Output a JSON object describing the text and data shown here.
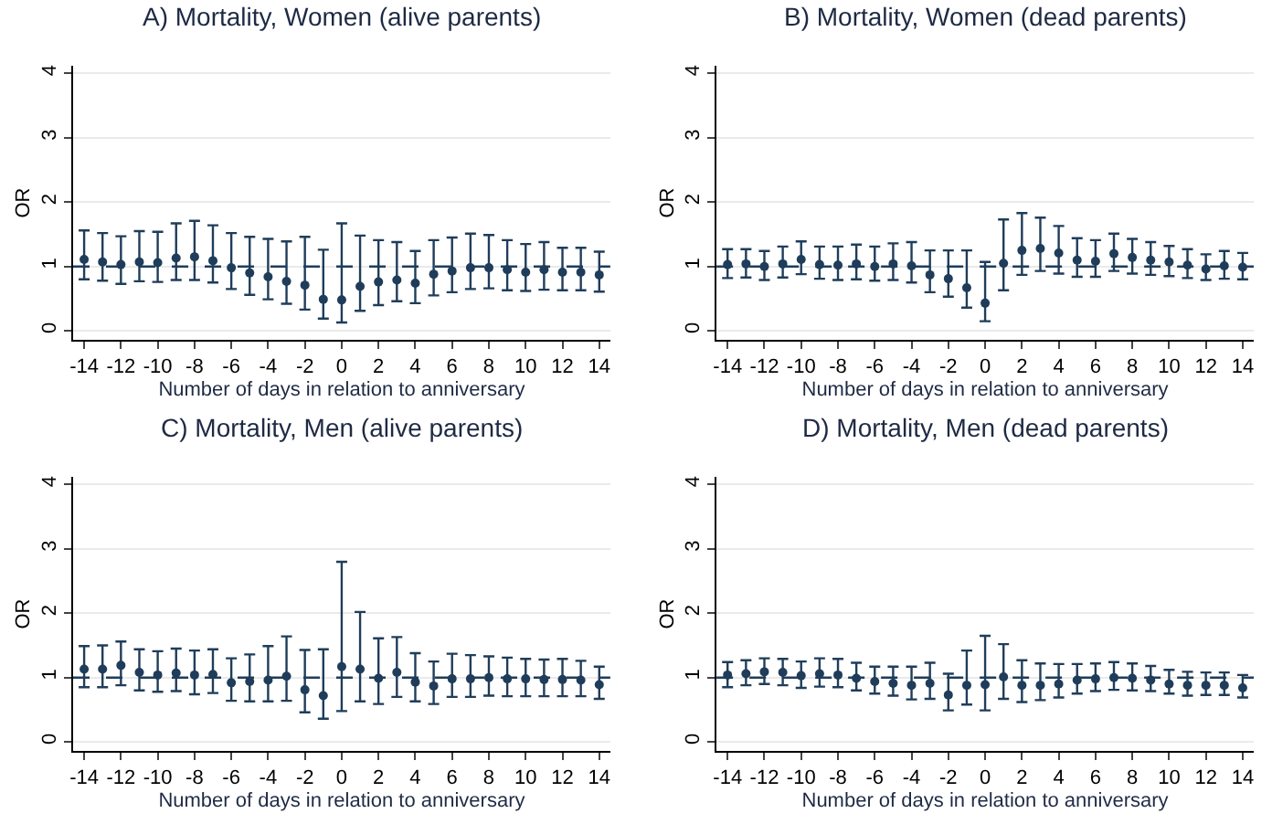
{
  "chart_data": [
    {
      "type": "scatter",
      "title": "A) Mortality, Women (alive parents)",
      "xlabel": "Number of days in relation to anniversary",
      "ylabel": "OR",
      "x": [
        -14,
        -13,
        -12,
        -11,
        -10,
        -9,
        -8,
        -7,
        -6,
        -5,
        -4,
        -3,
        -2,
        -1,
        0,
        1,
        2,
        3,
        4,
        5,
        6,
        7,
        8,
        9,
        10,
        11,
        12,
        13,
        14
      ],
      "xlim": [
        -14.6,
        14.6
      ],
      "xticks": [
        -14,
        -12,
        -10,
        -8,
        -6,
        -4,
        -2,
        0,
        2,
        4,
        6,
        8,
        10,
        12,
        14
      ],
      "ylim": [
        -0.14,
        4.12
      ],
      "yticks": [
        0,
        1,
        2,
        3,
        4
      ],
      "grid": "y",
      "marker": "circle",
      "series": [
        {
          "color": "#1f3d5a",
          "values": [
            1.11,
            1.07,
            1.03,
            1.07,
            1.06,
            1.13,
            1.15,
            1.09,
            0.98,
            0.9,
            0.84,
            0.77,
            0.71,
            0.49,
            0.48,
            0.69,
            0.76,
            0.79,
            0.74,
            0.88,
            0.93,
            0.98,
            0.98,
            0.95,
            0.91,
            0.95,
            0.91,
            0.91,
            0.87
          ],
          "errors": [
            [
              0.8,
              1.56
            ],
            [
              0.78,
              1.52
            ],
            [
              0.73,
              1.47
            ],
            [
              0.77,
              1.55
            ],
            [
              0.76,
              1.54
            ],
            [
              0.79,
              1.67
            ],
            [
              0.79,
              1.71
            ],
            [
              0.75,
              1.64
            ],
            [
              0.65,
              1.52
            ],
            [
              0.56,
              1.46
            ],
            [
              0.49,
              1.43
            ],
            [
              0.42,
              1.39
            ],
            [
              0.33,
              1.46
            ],
            [
              0.19,
              1.26
            ],
            [
              0.13,
              1.67
            ],
            [
              0.31,
              1.48
            ],
            [
              0.4,
              1.41
            ],
            [
              0.46,
              1.38
            ],
            [
              0.43,
              1.24
            ],
            [
              0.55,
              1.41
            ],
            [
              0.6,
              1.45
            ],
            [
              0.65,
              1.51
            ],
            [
              0.66,
              1.49
            ],
            [
              0.63,
              1.41
            ],
            [
              0.62,
              1.35
            ],
            [
              0.64,
              1.38
            ],
            [
              0.63,
              1.29
            ],
            [
              0.63,
              1.29
            ],
            [
              0.61,
              1.23
            ]
          ]
        }
      ],
      "ref_lines": [
        {
          "axis": "y",
          "value": 1,
          "color": "#1f3d5a",
          "line_style": "dashed"
        }
      ]
    },
    {
      "type": "scatter",
      "title": "B) Mortality, Women (dead parents)",
      "xlabel": "Number of days in relation to anniversary",
      "ylabel": "OR",
      "x": [
        -14,
        -13,
        -12,
        -11,
        -10,
        -9,
        -8,
        -7,
        -6,
        -5,
        -4,
        -3,
        -2,
        -1,
        0,
        1,
        2,
        3,
        4,
        5,
        6,
        7,
        8,
        9,
        10,
        11,
        12,
        13,
        14
      ],
      "xlim": [
        -14.6,
        14.6
      ],
      "xticks": [
        -14,
        -12,
        -10,
        -8,
        -6,
        -4,
        -2,
        0,
        2,
        4,
        6,
        8,
        10,
        12,
        14
      ],
      "ylim": [
        -0.14,
        4.12
      ],
      "yticks": [
        0,
        1,
        2,
        3,
        4
      ],
      "grid": "y",
      "marker": "circle",
      "series": [
        {
          "color": "#1f3d5a",
          "values": [
            1.03,
            1.04,
            1.0,
            1.04,
            1.11,
            1.03,
            1.02,
            1.04,
            1.0,
            1.04,
            1.01,
            0.87,
            0.81,
            0.67,
            0.43,
            1.05,
            1.25,
            1.28,
            1.21,
            1.1,
            1.08,
            1.2,
            1.14,
            1.1,
            1.07,
            1.02,
            0.96,
            1.01,
            0.99
          ],
          "errors": [
            [
              0.82,
              1.27
            ],
            [
              0.83,
              1.27
            ],
            [
              0.79,
              1.24
            ],
            [
              0.83,
              1.31
            ],
            [
              0.88,
              1.39
            ],
            [
              0.81,
              1.31
            ],
            [
              0.79,
              1.31
            ],
            [
              0.8,
              1.34
            ],
            [
              0.78,
              1.31
            ],
            [
              0.79,
              1.36
            ],
            [
              0.75,
              1.38
            ],
            [
              0.6,
              1.25
            ],
            [
              0.53,
              1.25
            ],
            [
              0.36,
              1.25
            ],
            [
              0.15,
              1.07
            ],
            [
              0.63,
              1.73
            ],
            [
              0.87,
              1.83
            ],
            [
              0.93,
              1.76
            ],
            [
              0.89,
              1.63
            ],
            [
              0.84,
              1.44
            ],
            [
              0.84,
              1.41
            ],
            [
              0.93,
              1.51
            ],
            [
              0.89,
              1.43
            ],
            [
              0.87,
              1.38
            ],
            [
              0.85,
              1.32
            ],
            [
              0.82,
              1.27
            ],
            [
              0.79,
              1.19
            ],
            [
              0.81,
              1.24
            ],
            [
              0.8,
              1.21
            ]
          ]
        }
      ],
      "ref_lines": [
        {
          "axis": "y",
          "value": 1,
          "color": "#1f3d5a",
          "line_style": "dashed"
        }
      ]
    },
    {
      "type": "scatter",
      "title": "C) Mortality, Men (alive parents)",
      "xlabel": "Number of days in relation to anniversary",
      "ylabel": "OR",
      "x": [
        -14,
        -13,
        -12,
        -11,
        -10,
        -9,
        -8,
        -7,
        -6,
        -5,
        -4,
        -3,
        -2,
        -1,
        0,
        1,
        2,
        3,
        4,
        5,
        6,
        7,
        8,
        9,
        10,
        11,
        12,
        13,
        14
      ],
      "xlim": [
        -14.6,
        14.6
      ],
      "xticks": [
        -14,
        -12,
        -10,
        -8,
        -6,
        -4,
        -2,
        0,
        2,
        4,
        6,
        8,
        10,
        12,
        14
      ],
      "ylim": [
        -0.14,
        4.12
      ],
      "yticks": [
        0,
        1,
        2,
        3,
        4
      ],
      "grid": "y",
      "marker": "circle",
      "series": [
        {
          "color": "#1f3d5a",
          "values": [
            1.13,
            1.13,
            1.19,
            1.08,
            1.04,
            1.07,
            1.04,
            1.05,
            0.92,
            0.94,
            0.96,
            1.02,
            0.81,
            0.72,
            1.17,
            1.13,
            0.99,
            1.08,
            0.93,
            0.87,
            0.98,
            0.98,
            1.0,
            0.98,
            0.98,
            0.97,
            0.97,
            0.96,
            0.89
          ],
          "errors": [
            [
              0.85,
              1.49
            ],
            [
              0.85,
              1.5
            ],
            [
              0.88,
              1.56
            ],
            [
              0.8,
              1.44
            ],
            [
              0.78,
              1.41
            ],
            [
              0.79,
              1.45
            ],
            [
              0.74,
              1.42
            ],
            [
              0.76,
              1.44
            ],
            [
              0.64,
              1.3
            ],
            [
              0.63,
              1.36
            ],
            [
              0.63,
              1.49
            ],
            [
              0.64,
              1.64
            ],
            [
              0.46,
              1.43
            ],
            [
              0.36,
              1.44
            ],
            [
              0.48,
              2.8
            ],
            [
              0.63,
              2.02
            ],
            [
              0.59,
              1.61
            ],
            [
              0.7,
              1.63
            ],
            [
              0.63,
              1.38
            ],
            [
              0.59,
              1.25
            ],
            [
              0.7,
              1.37
            ],
            [
              0.7,
              1.35
            ],
            [
              0.72,
              1.33
            ],
            [
              0.71,
              1.31
            ],
            [
              0.71,
              1.29
            ],
            [
              0.71,
              1.28
            ],
            [
              0.71,
              1.29
            ],
            [
              0.71,
              1.26
            ],
            [
              0.67,
              1.17
            ]
          ]
        }
      ],
      "ref_lines": [
        {
          "axis": "y",
          "value": 1,
          "color": "#1f3d5a",
          "line_style": "dashed"
        }
      ]
    },
    {
      "type": "scatter",
      "title": "D) Mortality, Men (dead parents)",
      "xlabel": "Number of days in relation to anniversary",
      "ylabel": "OR",
      "x": [
        -14,
        -13,
        -12,
        -11,
        -10,
        -9,
        -8,
        -7,
        -6,
        -5,
        -4,
        -3,
        -2,
        -1,
        0,
        1,
        2,
        3,
        4,
        5,
        6,
        7,
        8,
        9,
        10,
        11,
        12,
        13,
        14
      ],
      "xlim": [
        -14.6,
        14.6
      ],
      "xticks": [
        -14,
        -12,
        -10,
        -8,
        -6,
        -4,
        -2,
        0,
        2,
        4,
        6,
        8,
        10,
        12,
        14
      ],
      "ylim": [
        -0.14,
        4.12
      ],
      "yticks": [
        0,
        1,
        2,
        3,
        4
      ],
      "grid": "y",
      "marker": "circle",
      "series": [
        {
          "color": "#1f3d5a",
          "values": [
            1.04,
            1.06,
            1.09,
            1.08,
            1.03,
            1.06,
            1.04,
            0.99,
            0.94,
            0.91,
            0.88,
            0.91,
            0.73,
            0.88,
            0.89,
            1.01,
            0.88,
            0.88,
            0.9,
            0.96,
            0.98,
            1.0,
            0.99,
            0.96,
            0.9,
            0.88,
            0.88,
            0.88,
            0.84
          ],
          "errors": [
            [
              0.85,
              1.24
            ],
            [
              0.88,
              1.27
            ],
            [
              0.9,
              1.3
            ],
            [
              0.88,
              1.29
            ],
            [
              0.84,
              1.25
            ],
            [
              0.86,
              1.3
            ],
            [
              0.85,
              1.29
            ],
            [
              0.8,
              1.23
            ],
            [
              0.75,
              1.17
            ],
            [
              0.72,
              1.17
            ],
            [
              0.66,
              1.17
            ],
            [
              0.67,
              1.23
            ],
            [
              0.49,
              1.06
            ],
            [
              0.58,
              1.42
            ],
            [
              0.49,
              1.65
            ],
            [
              0.67,
              1.52
            ],
            [
              0.62,
              1.27
            ],
            [
              0.65,
              1.22
            ],
            [
              0.69,
              1.21
            ],
            [
              0.75,
              1.21
            ],
            [
              0.79,
              1.22
            ],
            [
              0.81,
              1.24
            ],
            [
              0.8,
              1.22
            ],
            [
              0.79,
              1.18
            ],
            [
              0.75,
              1.12
            ],
            [
              0.72,
              1.09
            ],
            [
              0.73,
              1.08
            ],
            [
              0.73,
              1.08
            ],
            [
              0.69,
              1.04
            ]
          ]
        }
      ],
      "ref_lines": [
        {
          "axis": "y",
          "value": 1,
          "color": "#1f3d5a",
          "line_style": "dashed"
        }
      ]
    }
  ]
}
